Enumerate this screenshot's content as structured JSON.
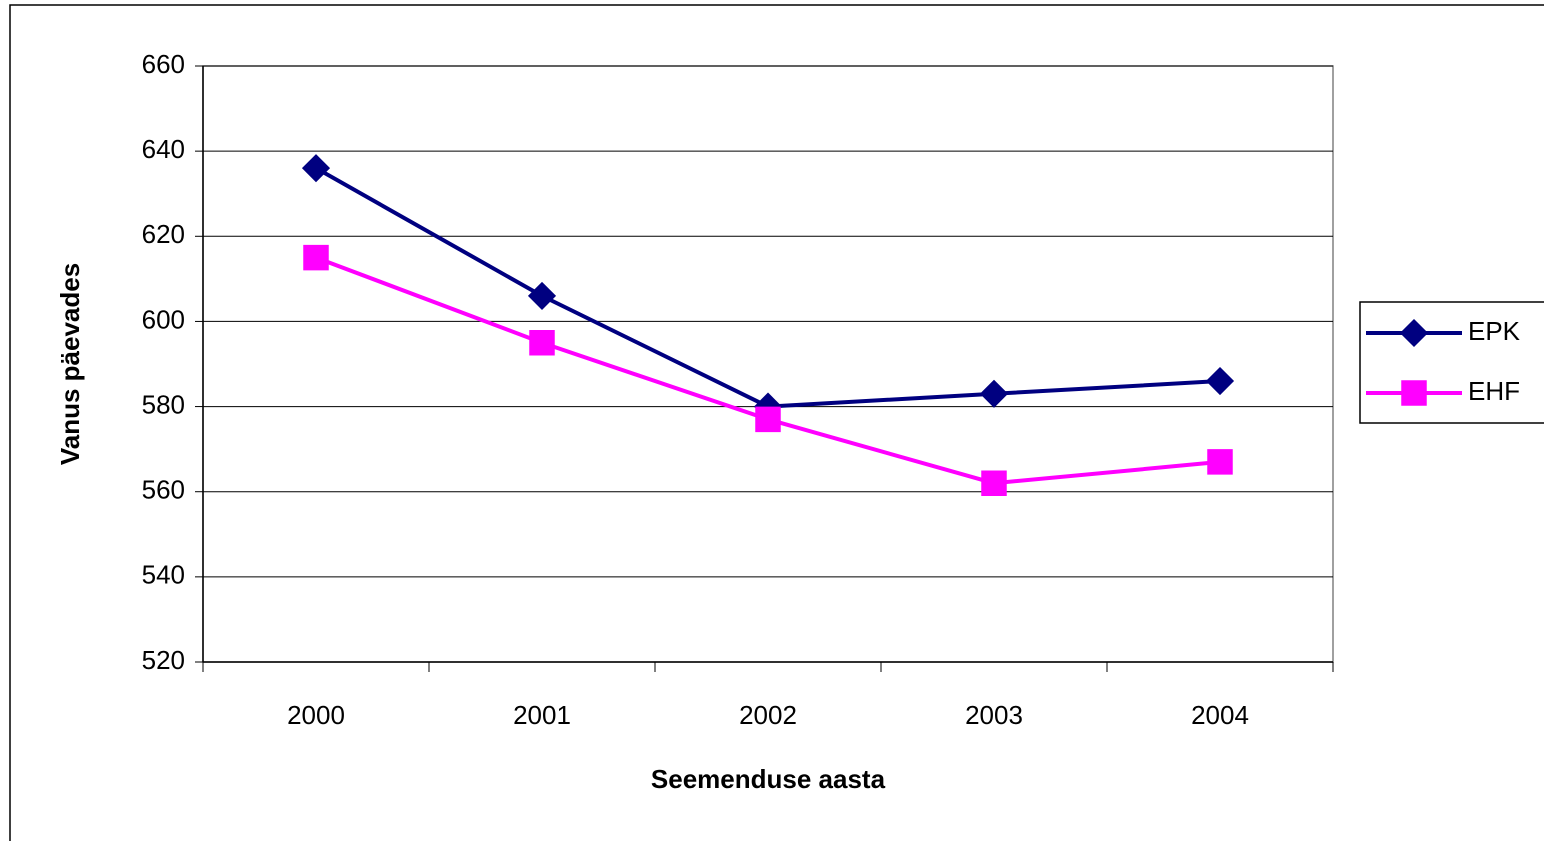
{
  "chart_data": {
    "type": "line",
    "xlabel": "Seemenduse aasta",
    "ylabel": "Vanus päevades",
    "categories": [
      "2000",
      "2001",
      "2002",
      "2003",
      "2004"
    ],
    "series": [
      {
        "name": "EPK",
        "color": "#000080",
        "marker": "diamond",
        "values": [
          636,
          606,
          580,
          583,
          586
        ]
      },
      {
        "name": "EHF",
        "color": "#ff00ff",
        "marker": "square",
        "values": [
          615,
          595,
          577,
          562,
          567
        ]
      }
    ],
    "ylim": [
      520,
      660
    ],
    "yticks": [
      520,
      540,
      560,
      580,
      600,
      620,
      640,
      660
    ],
    "grid": true,
    "legend": "right"
  }
}
